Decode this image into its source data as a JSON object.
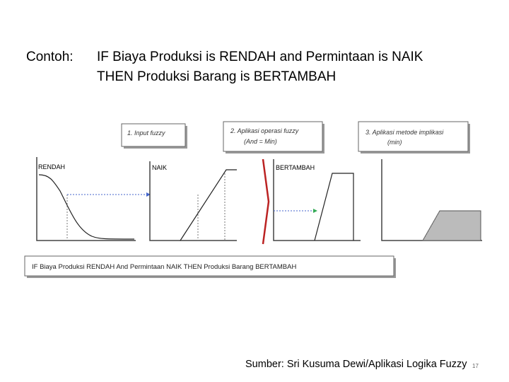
{
  "header": {
    "label": "Contoh:",
    "lines": [
      "IF Biaya Produksi is RENDAH  and Permintaan is NAIK",
      "THEN Produksi Barang is BERTAMBAH"
    ]
  },
  "steps": [
    [
      "1. Input fuzzy"
    ],
    [
      "2. Aplikasi operasi fuzzy",
      "(And = Min)"
    ],
    [
      "3. Aplikasi metode implikasi",
      "(min)"
    ]
  ],
  "panels": [
    "RENDAH",
    "NAIK",
    "BERTAMBAH"
  ],
  "rule": "IF Biaya Produksi RENDAH And Permintaan NAIK  THEN Produksi Barang BERTAMBAH",
  "footer": {
    "source": "Sumber: Sri Kusuma Dewi/Aplikasi Logika Fuzzy",
    "page": "17"
  }
}
